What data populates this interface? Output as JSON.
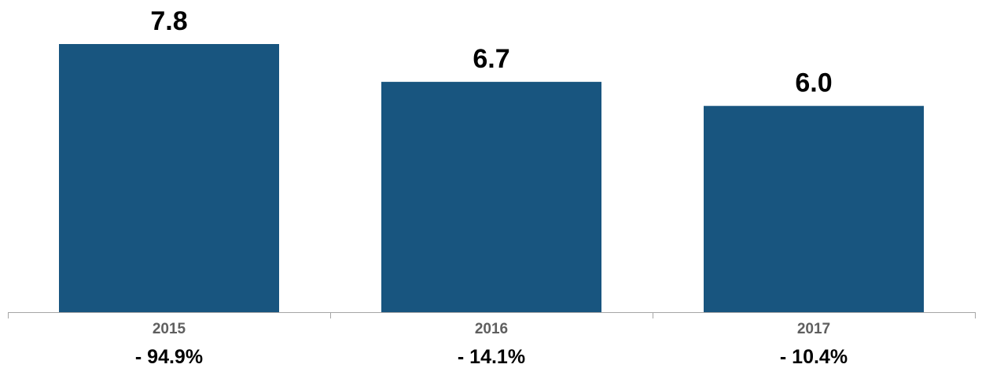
{
  "colors": {
    "bar": "#18557f",
    "axis": "#a6a6a6",
    "category_text": "#5f5f5f",
    "value_text": "#000000"
  },
  "chart_data": {
    "type": "bar",
    "title": "",
    "xlabel": "",
    "ylabel": "",
    "categories": [
      "2015",
      "2016",
      "2017"
    ],
    "values": [
      7.8,
      6.7,
      6.0
    ],
    "value_labels": [
      "7.8",
      "6.7",
      "6.0"
    ],
    "sub_labels": [
      "- 94.9%",
      "- 14.1%",
      "- 10.4%"
    ],
    "ylim": [
      0,
      7.8
    ],
    "grid": false,
    "legend": "none"
  }
}
